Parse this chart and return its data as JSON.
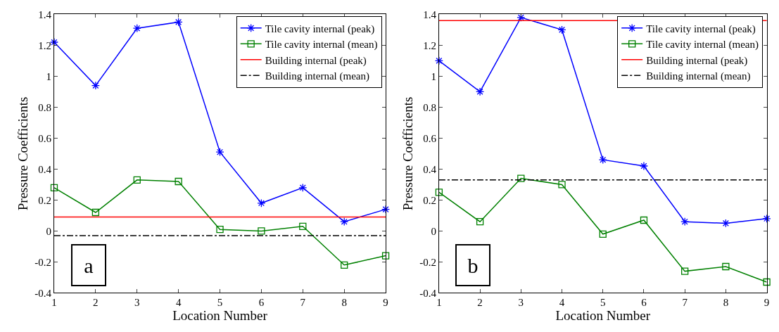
{
  "chart_data": [
    {
      "type": "line",
      "xlabel": "Location Number",
      "ylabel": "Pressure Coefficients",
      "x": [
        1,
        2,
        3,
        4,
        5,
        6,
        7,
        8,
        9
      ],
      "xlim": [
        1,
        9
      ],
      "xticks": [
        1,
        2,
        3,
        4,
        5,
        6,
        7,
        8,
        9
      ],
      "ylim": [
        -0.4,
        1.4
      ],
      "yticks": [
        -0.4,
        -0.2,
        0,
        0.2,
        0.4,
        0.6,
        0.8,
        1,
        1.2,
        1.4
      ],
      "legend": "top right",
      "annotations": [
        "a"
      ],
      "ref_lines": [
        {
          "axis": "y",
          "value": 0.09,
          "label": "Building internal (peak)",
          "color": "#ff0000",
          "line_style": "solid"
        },
        {
          "axis": "y",
          "value": -0.03,
          "label": "Building internal (mean)",
          "color": "#000000",
          "line_style": "dashdot"
        }
      ],
      "series": [
        {
          "name": "Tile cavity internal (peak)",
          "color": "#0000ff",
          "marker": "cross",
          "line_style": "solid",
          "values": [
            1.22,
            0.94,
            1.31,
            1.35,
            0.51,
            0.18,
            0.28,
            0.06,
            0.14
          ]
        },
        {
          "name": "Tile cavity internal (mean)",
          "color": "#008000",
          "marker": "square",
          "line_style": "solid",
          "values": [
            0.28,
            0.12,
            0.33,
            0.32,
            0.01,
            0.0,
            0.03,
            -0.22,
            -0.16
          ]
        }
      ]
    },
    {
      "type": "line",
      "xlabel": "Location Number",
      "ylabel": "Pressure Coefficients",
      "x": [
        1,
        2,
        3,
        4,
        5,
        6,
        7,
        8,
        9
      ],
      "xlim": [
        1,
        9
      ],
      "xticks": [
        1,
        2,
        3,
        4,
        5,
        6,
        7,
        8,
        9
      ],
      "ylim": [
        -0.4,
        1.4
      ],
      "yticks": [
        -0.4,
        -0.2,
        0,
        0.2,
        0.4,
        0.6,
        0.8,
        1,
        1.2,
        1.4
      ],
      "legend": "top right",
      "annotations": [
        "b"
      ],
      "ref_lines": [
        {
          "axis": "y",
          "value": 1.36,
          "label": "Building internal (peak)",
          "color": "#ff0000",
          "line_style": "solid"
        },
        {
          "axis": "y",
          "value": 0.33,
          "label": "Building internal (mean)",
          "color": "#000000",
          "line_style": "dashdot"
        }
      ],
      "series": [
        {
          "name": "Tile cavity internal (peak)",
          "color": "#0000ff",
          "marker": "cross",
          "line_style": "solid",
          "values": [
            1.1,
            0.9,
            1.38,
            1.3,
            0.46,
            0.42,
            0.06,
            0.05,
            0.08
          ]
        },
        {
          "name": "Tile cavity internal (mean)",
          "color": "#008000",
          "marker": "square",
          "line_style": "solid",
          "values": [
            0.25,
            0.06,
            0.34,
            0.3,
            -0.02,
            0.07,
            -0.26,
            -0.23,
            -0.33
          ]
        }
      ]
    }
  ]
}
